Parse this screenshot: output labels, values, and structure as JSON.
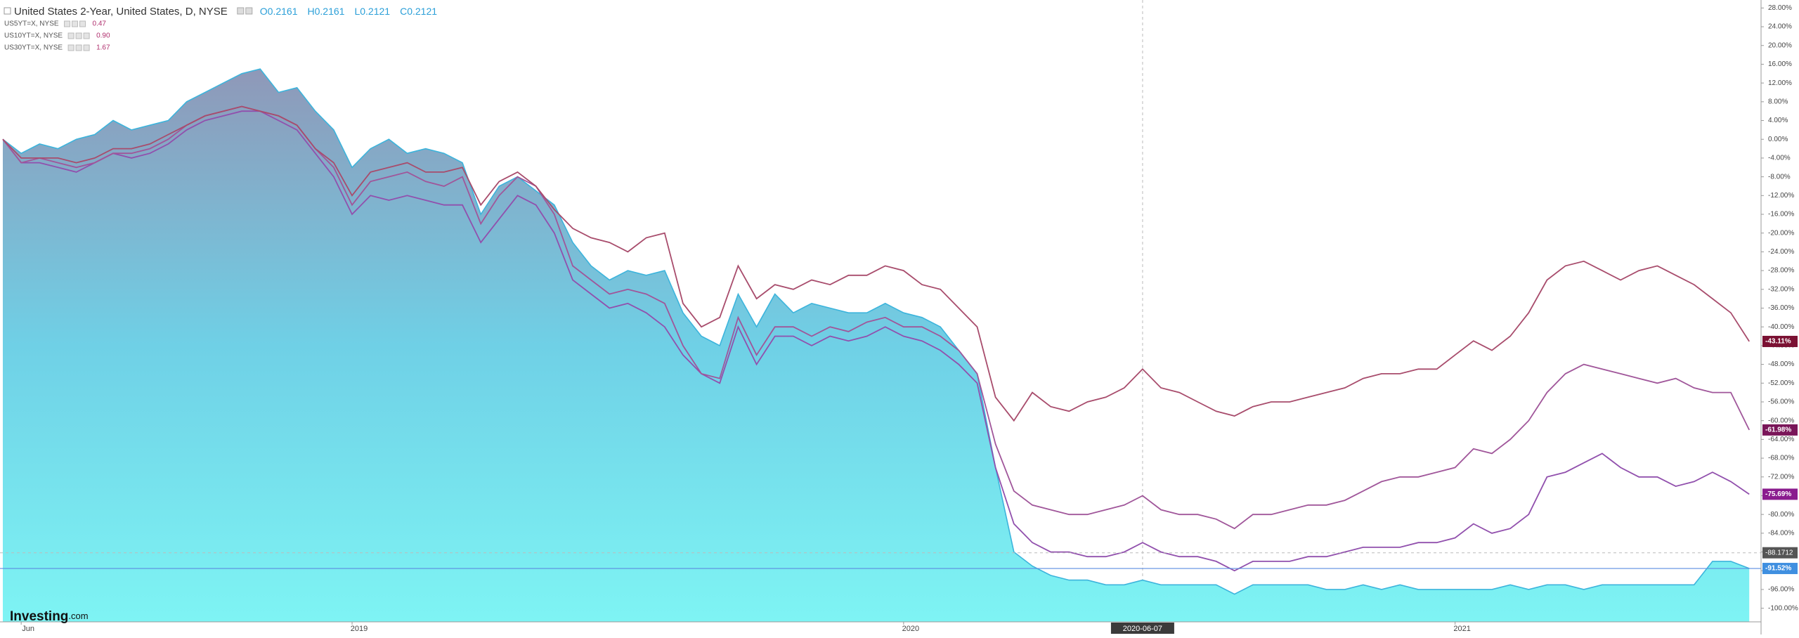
{
  "chart_data": {
    "type": "line",
    "legend_prices": [
      "0.47",
      "0.90",
      "1.67"
    ],
    "ohlc": [
      {
        "key": "O",
        "value": "0.2161"
      },
      {
        "key": "H",
        "value": "0.2161"
      },
      {
        "key": "L",
        "value": "0.2121"
      },
      {
        "key": "C",
        "value": "0.2121"
      }
    ],
    "watermark": "Investing",
    "watermark_suffix": ".com",
    "categories": [
      null,
      "Jun",
      null,
      null,
      null,
      null,
      null,
      null,
      null,
      null,
      null,
      null,
      null,
      null,
      null,
      null,
      null,
      null,
      null,
      "2019",
      null,
      null,
      null,
      null,
      null,
      null,
      null,
      null,
      null,
      null,
      null,
      null,
      null,
      null,
      null,
      null,
      null,
      null,
      null,
      null,
      null,
      null,
      null,
      null,
      null,
      null,
      null,
      null,
      null,
      "2020",
      null,
      null,
      null,
      null,
      null,
      null,
      null,
      null,
      null,
      null,
      null,
      null,
      "2020-06-07",
      null,
      null,
      null,
      null,
      null,
      null,
      null,
      null,
      null,
      null,
      null,
      null,
      null,
      null,
      null,
      null,
      "2021",
      null,
      null,
      null,
      null,
      null,
      null,
      null,
      null,
      null,
      null,
      null,
      null,
      null,
      null,
      null,
      null
    ],
    "crosshair": "2020-06-07",
    "crosshair_y": -88.1712,
    "ylim": [
      -102.9,
      29.7
    ],
    "yticks": [
      {
        "value": 28,
        "label": "28.00%"
      },
      {
        "value": 24,
        "label": "24.00%"
      },
      {
        "value": 20,
        "label": "20.00%"
      },
      {
        "value": 16,
        "label": "16.00%"
      },
      {
        "value": 12,
        "label": "12.00%"
      },
      {
        "value": 8,
        "label": "8.00%"
      },
      {
        "value": 4,
        "label": "4.00%"
      },
      {
        "value": 0,
        "label": "0.00%"
      },
      {
        "value": -4,
        "label": "-4.00%"
      },
      {
        "value": -8,
        "label": "-8.00%"
      },
      {
        "value": -12,
        "label": "-12.00%"
      },
      {
        "value": -16,
        "label": "-16.00%"
      },
      {
        "value": -20,
        "label": "-20.00%"
      },
      {
        "value": -24,
        "label": "-24.00%"
      },
      {
        "value": -28,
        "label": "-28.00%"
      },
      {
        "value": -32,
        "label": "-32.00%"
      },
      {
        "value": -36,
        "label": "-36.00%"
      },
      {
        "value": -40,
        "label": "-40.00%"
      },
      {
        "value": -44,
        "label": "-44.00%"
      },
      {
        "value": -48,
        "label": "-48.00%"
      },
      {
        "value": -52,
        "label": "-52.00%"
      },
      {
        "value": -56,
        "label": "-56.00%"
      },
      {
        "value": -60,
        "label": "-60.00%"
      },
      {
        "value": -64,
        "label": "-64.00%"
      },
      {
        "value": -68,
        "label": "-68.00%"
      },
      {
        "value": -72,
        "label": "-72.00%"
      },
      {
        "value": -76,
        "label": "-76.00%"
      },
      {
        "value": -80,
        "label": "-80.00%"
      },
      {
        "value": -84,
        "label": "-84.00%"
      },
      {
        "value": -88,
        "label": "-88.00%"
      },
      {
        "value": -92,
        "label": "-92.00%"
      },
      {
        "value": -96,
        "label": "-96.00%"
      },
      {
        "value": -100,
        "label": "-100.00%"
      }
    ],
    "series": [
      {
        "name": "United States 2-Year, United States, D, NYSE",
        "area": true,
        "color": "#3cb4dc",
        "tag_color": "#3f8fe0",
        "values": [
          0,
          -3,
          -1,
          -2,
          0,
          1,
          4,
          2,
          3,
          4,
          8,
          10,
          12,
          14,
          15,
          10,
          11,
          6,
          2,
          -6,
          -2,
          0,
          -3,
          -2,
          -3,
          -5,
          -16,
          -10,
          -8,
          -11,
          -14,
          -22,
          -27,
          -30,
          -28,
          -29,
          -28,
          -37,
          -42,
          -44,
          -33,
          -40,
          -33,
          -37,
          -35,
          -36,
          -37,
          -37,
          -35,
          -37,
          -38,
          -40,
          -45,
          -50,
          -70,
          -88,
          -91,
          -93,
          -94,
          -94,
          -95,
          -95,
          -94,
          -95,
          -95,
          -95,
          -95,
          -97,
          -95,
          -95,
          -95,
          -95,
          -96,
          -96,
          -95,
          -96,
          -95,
          -96,
          -96,
          -96,
          -96,
          -96,
          -95,
          -96,
          -95,
          -95,
          -96,
          -95,
          -95,
          -95,
          -95,
          -95,
          -95,
          -90,
          -90,
          -91.52
        ],
        "value_labels": [
          null,
          null,
          null,
          null,
          null,
          null,
          null,
          null,
          null,
          null,
          null,
          null,
          null,
          null,
          null,
          null,
          null,
          null,
          null,
          null,
          null,
          null,
          null,
          null,
          null,
          null,
          null,
          null,
          null,
          null,
          null,
          null,
          null,
          null,
          null,
          null,
          null,
          null,
          null,
          null,
          null,
          null,
          null,
          null,
          null,
          null,
          null,
          null,
          null,
          null,
          null,
          null,
          null,
          null,
          null,
          null,
          null,
          null,
          null,
          null,
          null,
          null,
          null,
          null,
          null,
          null,
          null,
          null,
          null,
          null,
          null,
          null,
          null,
          null,
          null,
          null,
          null,
          null,
          null,
          null,
          null,
          null,
          null,
          null,
          null,
          null,
          null,
          null,
          null,
          null,
          null,
          null,
          null,
          null,
          null,
          "-91.52%"
        ]
      },
      {
        "name": "US5YT=X, NYSE",
        "area": false,
        "color": "#9150ad",
        "tag_color": "#8a1c8e",
        "values": [
          0,
          -5,
          -5,
          -6,
          -7,
          -5,
          -3,
          -4,
          -3,
          -1,
          2,
          4,
          5,
          6,
          6,
          4,
          2,
          -3,
          -8,
          -16,
          -12,
          -13,
          -12,
          -13,
          -14,
          -14,
          -22,
          -17,
          -12,
          -14,
          -20,
          -30,
          -33,
          -36,
          -35,
          -37,
          -40,
          -46,
          -50,
          -52,
          -40,
          -48,
          -42,
          -42,
          -44,
          -42,
          -43,
          -42,
          -40,
          -42,
          -43,
          -45,
          -48,
          -52,
          -70,
          -82,
          -86,
          -88,
          -88,
          -89,
          -89,
          -88,
          -86,
          -88,
          -89,
          -89,
          -90,
          -92,
          -90,
          -90,
          -90,
          -89,
          -89,
          -88,
          -87,
          -87,
          -87,
          -86,
          -86,
          -85,
          -82,
          -84,
          -83,
          -80,
          -72,
          -71,
          -69,
          -67,
          -70,
          -72,
          -72,
          -74,
          -73,
          -71,
          -73,
          -75.69
        ],
        "value_labels": [
          null,
          null,
          null,
          null,
          null,
          null,
          null,
          null,
          null,
          null,
          null,
          null,
          null,
          null,
          null,
          null,
          null,
          null,
          null,
          null,
          null,
          null,
          null,
          null,
          null,
          null,
          null,
          null,
          null,
          null,
          null,
          null,
          null,
          null,
          null,
          null,
          null,
          null,
          null,
          null,
          null,
          null,
          null,
          null,
          null,
          null,
          null,
          null,
          null,
          null,
          null,
          null,
          null,
          null,
          null,
          null,
          null,
          null,
          null,
          null,
          null,
          null,
          null,
          null,
          null,
          null,
          null,
          null,
          null,
          null,
          null,
          null,
          null,
          null,
          null,
          null,
          null,
          null,
          null,
          null,
          null,
          null,
          null,
          null,
          null,
          null,
          null,
          null,
          null,
          null,
          null,
          null,
          null,
          null,
          null,
          "-75.69%"
        ]
      },
      {
        "name": "US10YT=X, NYSE",
        "area": false,
        "color": "#a0569a",
        "tag_color": "#7a1659",
        "values": [
          0,
          -5,
          -4,
          -5,
          -6,
          -5,
          -3,
          -3,
          -2,
          0,
          3,
          5,
          6,
          7,
          6,
          5,
          3,
          -2,
          -6,
          -14,
          -9,
          -8,
          -7,
          -9,
          -10,
          -8,
          -18,
          -12,
          -8,
          -10,
          -16,
          -27,
          -30,
          -33,
          -32,
          -33,
          -35,
          -44,
          -50,
          -51,
          -38,
          -46,
          -40,
          -40,
          -42,
          -40,
          -41,
          -39,
          -38,
          -40,
          -40,
          -42,
          -45,
          -50,
          -65,
          -75,
          -78,
          -79,
          -80,
          -80,
          -79,
          -78,
          -76,
          -79,
          -80,
          -80,
          -81,
          -83,
          -80,
          -80,
          -79,
          -78,
          -78,
          -77,
          -75,
          -73,
          -72,
          -72,
          -71,
          -70,
          -66,
          -67,
          -64,
          -60,
          -54,
          -50,
          -48,
          -49,
          -50,
          -51,
          -52,
          -51,
          -53,
          -54,
          -54,
          -61.98
        ],
        "value_labels": [
          null,
          null,
          null,
          null,
          null,
          null,
          null,
          null,
          null,
          null,
          null,
          null,
          null,
          null,
          null,
          null,
          null,
          null,
          null,
          null,
          null,
          null,
          null,
          null,
          null,
          null,
          null,
          null,
          null,
          null,
          null,
          null,
          null,
          null,
          null,
          null,
          null,
          null,
          null,
          null,
          null,
          null,
          null,
          null,
          null,
          null,
          null,
          null,
          null,
          null,
          null,
          null,
          null,
          null,
          null,
          null,
          null,
          null,
          null,
          null,
          null,
          null,
          null,
          null,
          null,
          null,
          null,
          null,
          null,
          null,
          null,
          null,
          null,
          null,
          null,
          null,
          null,
          null,
          null,
          null,
          null,
          null,
          null,
          null,
          null,
          null,
          null,
          null,
          null,
          null,
          null,
          null,
          null,
          null,
          null,
          "-61.98%"
        ]
      },
      {
        "name": "US30YT=X, NYSE",
        "area": false,
        "color": "#a84c6c",
        "tag_color": "#7b1133",
        "values": [
          0,
          -4,
          -4,
          -4,
          -5,
          -4,
          -2,
          -2,
          -1,
          1,
          3,
          5,
          6,
          7,
          6,
          5,
          3,
          -2,
          -5,
          -12,
          -7,
          -6,
          -5,
          -7,
          -7,
          -6,
          -14,
          -9,
          -7,
          -10,
          -15,
          -19,
          -21,
          -22,
          -24,
          -21,
          -20,
          -35,
          -40,
          -38,
          -27,
          -34,
          -31,
          -32,
          -30,
          -31,
          -29,
          -29,
          -27,
          -28,
          -31,
          -32,
          -36,
          -40,
          -55,
          -60,
          -54,
          -57,
          -58,
          -56,
          -55,
          -53,
          -49,
          -53,
          -54,
          -56,
          -58,
          -59,
          -57,
          -56,
          -56,
          -55,
          -54,
          -53,
          -51,
          -50,
          -50,
          -49,
          -49,
          -46,
          -43,
          -45,
          -42,
          -37,
          -30,
          -27,
          -26,
          -28,
          -30,
          -28,
          -27,
          -29,
          -31,
          -34,
          -37,
          -43.11
        ],
        "value_labels": [
          null,
          null,
          null,
          null,
          null,
          null,
          null,
          null,
          null,
          null,
          null,
          null,
          null,
          null,
          null,
          null,
          null,
          null,
          null,
          null,
          null,
          null,
          null,
          null,
          null,
          null,
          null,
          null,
          null,
          null,
          null,
          null,
          null,
          null,
          null,
          null,
          null,
          null,
          null,
          null,
          null,
          null,
          null,
          null,
          null,
          null,
          null,
          null,
          null,
          null,
          null,
          null,
          null,
          null,
          null,
          null,
          null,
          null,
          null,
          null,
          null,
          null,
          null,
          null,
          null,
          null,
          null,
          null,
          null,
          null,
          null,
          null,
          null,
          null,
          null,
          null,
          null,
          null,
          null,
          null,
          null,
          null,
          null,
          null,
          null,
          null,
          null,
          null,
          null,
          null,
          null,
          null,
          null,
          null,
          null,
          "-43.11%"
        ]
      }
    ]
  }
}
